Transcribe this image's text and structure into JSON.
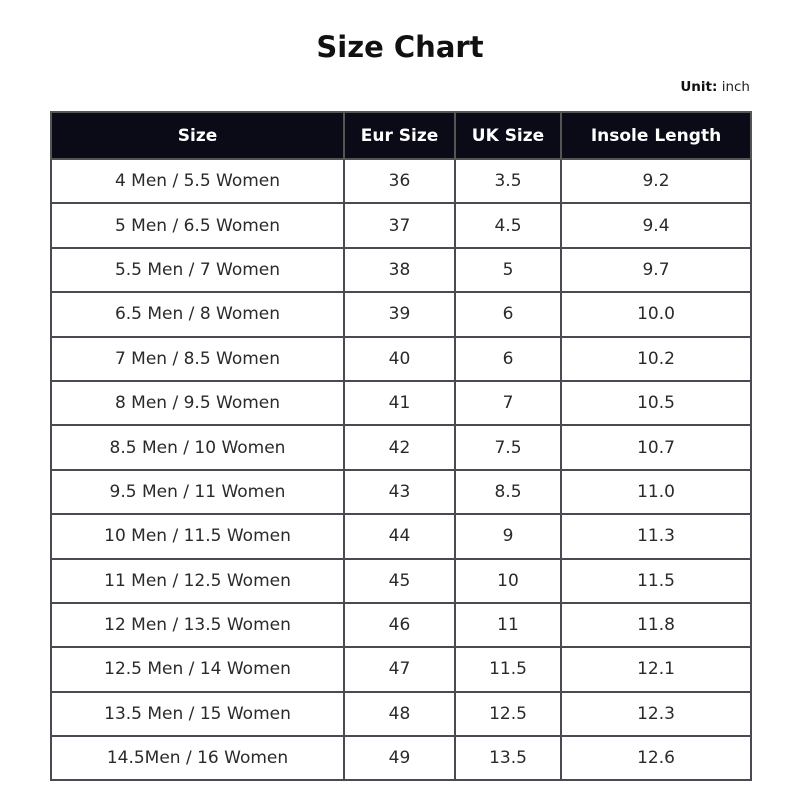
{
  "title": "Size Chart",
  "unit_label": "Unit:",
  "unit_value": "inch",
  "header_color": "#0b0b18",
  "columns": [
    "Size",
    "Eur Size",
    "UK Size",
    "Insole Length"
  ],
  "rows": [
    [
      "4 Men / 5.5 Women",
      "36",
      "3.5",
      "9.2"
    ],
    [
      "5 Men / 6.5 Women",
      "37",
      "4.5",
      "9.4"
    ],
    [
      "5.5 Men / 7 Women",
      "38",
      "5",
      "9.7"
    ],
    [
      "6.5 Men / 8 Women",
      "39",
      "6",
      "10.0"
    ],
    [
      "7 Men / 8.5 Women",
      "40",
      "6",
      "10.2"
    ],
    [
      "8 Men / 9.5 Women",
      "41",
      "7",
      "10.5"
    ],
    [
      "8.5 Men / 10 Women",
      "42",
      "7.5",
      "10.7"
    ],
    [
      "9.5 Men / 11 Women",
      "43",
      "8.5",
      "11.0"
    ],
    [
      "10 Men / 11.5 Women",
      "44",
      "9",
      "11.3"
    ],
    [
      "11 Men / 12.5 Women",
      "45",
      "10",
      "11.5"
    ],
    [
      "12 Men / 13.5 Women",
      "46",
      "11",
      "11.8"
    ],
    [
      "12.5 Men / 14 Women",
      "47",
      "11.5",
      "12.1"
    ],
    [
      "13.5 Men / 15 Women",
      "48",
      "12.5",
      "12.3"
    ],
    [
      "14.5Men / 16 Women",
      "49",
      "13.5",
      "12.6"
    ]
  ]
}
